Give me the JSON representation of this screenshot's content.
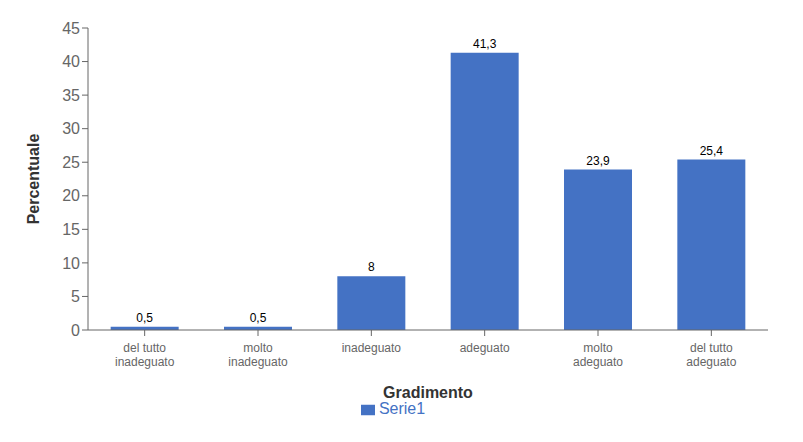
{
  "chart_data": {
    "type": "bar",
    "categories": [
      "del tutto\ninadeguato",
      "molto\ninadeguato",
      "inadeguato",
      "adeguato",
      "molto\nadeguato",
      "del tutto\nadeguato"
    ],
    "series": [
      {
        "name": "Serie1",
        "color": "#4472C4",
        "values": [
          0.5,
          0.5,
          8,
          41.3,
          23.9,
          25.4
        ],
        "value_labels": [
          "0,5",
          "0,5",
          "8",
          "41,3",
          "23,9",
          "25,4"
        ]
      }
    ],
    "xlabel": "Gradimento",
    "ylabel": "Percentuale",
    "ylim": [
      0,
      45
    ],
    "yticks": [
      0,
      5,
      10,
      15,
      20,
      25,
      30,
      35,
      40,
      45
    ],
    "data_labels": true,
    "grid": false,
    "legend": "bottom"
  }
}
